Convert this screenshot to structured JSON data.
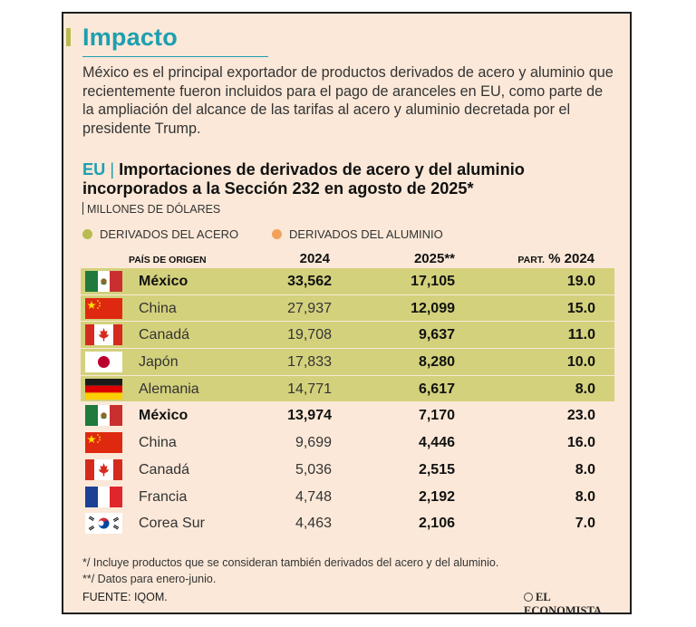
{
  "header": {
    "title": "Impacto",
    "intro": "México es el principal exportador de productos derivados de acero y aluminio que recientemente fueron incluidos para el pago de aranceles en EU, como parte de la ampliación del alcance de las tarifas al acero y aluminio decretada por el presidente Trump."
  },
  "subtitle": {
    "prefix": "EU",
    "separator": "|",
    "text": "Importaciones de derivados de acero y del aluminio incorporados a la Sección 232 en agosto de 2025*"
  },
  "units": "MILLONES DE DÓLARES",
  "legend": {
    "acero": "DERIVADOS DEL ACERO",
    "aluminio": "DERIVADOS DEL ALUMINIO"
  },
  "colors": {
    "acero": "#d3d17c",
    "aluminio": "#f7c594",
    "title": "#1d9fb0",
    "legend_acero": "#b9bb52",
    "legend_aluminio": "#f2a25a"
  },
  "table": {
    "headers": {
      "country": "PAÍS DE ORIGEN",
      "y2024": "2024",
      "y2025": "2025**",
      "part_small": "PART.",
      "part": "% 2024"
    },
    "rows": [
      {
        "group": "acero",
        "flag": "mexico-flag",
        "country": "México",
        "y2024": "33,562",
        "y2025": "17,105",
        "part": "19.0",
        "bold": true
      },
      {
        "group": "acero",
        "flag": "china-flag",
        "country": "China",
        "y2024": "27,937",
        "y2025": "12,099",
        "part": "15.0",
        "bold": false
      },
      {
        "group": "acero",
        "flag": "canada-flag",
        "country": "Canadá",
        "y2024": "19,708",
        "y2025": "9,637",
        "part": "11.0",
        "bold": false
      },
      {
        "group": "acero",
        "flag": "japan-flag",
        "country": "Japón",
        "y2024": "17,833",
        "y2025": "8,280",
        "part": "10.0",
        "bold": false
      },
      {
        "group": "acero",
        "flag": "germany-flag",
        "country": "Alemania",
        "y2024": "14,771",
        "y2025": "6,617",
        "part": "8.0",
        "bold": false
      },
      {
        "group": "aluminio",
        "flag": "mexico-flag",
        "country": "México",
        "y2024": "13,974",
        "y2025": "7,170",
        "part": "23.0",
        "bold": true
      },
      {
        "group": "aluminio",
        "flag": "china-flag",
        "country": "China",
        "y2024": "9,699",
        "y2025": "4,446",
        "part": "16.0",
        "bold": false
      },
      {
        "group": "aluminio",
        "flag": "canada-flag",
        "country": "Canadá",
        "y2024": "5,036",
        "y2025": "2,515",
        "part": "8.0",
        "bold": false
      },
      {
        "group": "aluminio",
        "flag": "france-flag",
        "country": "Francia",
        "y2024": "4,748",
        "y2025": "2,192",
        "part": "8.0",
        "bold": false
      },
      {
        "group": "aluminio",
        "flag": "south-korea-flag",
        "country": "Corea Sur",
        "y2024": "4,463",
        "y2025": "2,106",
        "part": "7.0",
        "bold": false
      }
    ]
  },
  "notes": [
    "*/ Incluye productos que se consideran también derivados del acero y del aluminio.",
    "**/ Datos para enero-junio."
  ],
  "source": "FUENTE: IQOM.",
  "logo": "EL ECONOMISTA"
}
